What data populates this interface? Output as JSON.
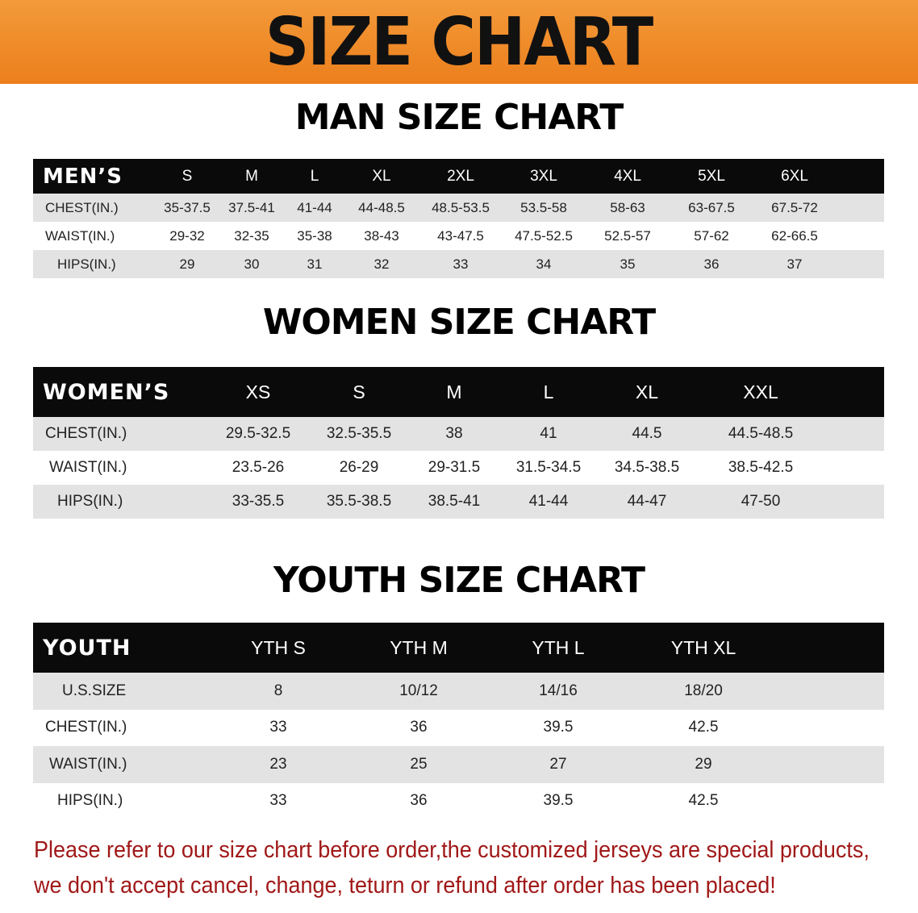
{
  "banner_title": "SIZE CHART",
  "men": {
    "title": "MAN SIZE CHART",
    "header_label": "MEN’S",
    "sizes": [
      "S",
      "M",
      "L",
      "XL",
      "2XL",
      "3XL",
      "4XL",
      "5XL",
      "6XL"
    ],
    "rows": [
      {
        "label": "CHEST(IN.)",
        "values": [
          "35-37.5",
          "37.5-41",
          "41-44",
          "44-48.5",
          "48.5-53.5",
          "53.5-58",
          "58-63",
          "63-67.5",
          "67.5-72"
        ]
      },
      {
        "label": "WAIST(IN.)",
        "values": [
          "29-32",
          "32-35",
          "35-38",
          "38-43",
          "43-47.5",
          "47.5-52.5",
          "52.5-57",
          "57-62",
          "62-66.5"
        ]
      },
      {
        "label": "HIPS(IN.)",
        "values": [
          "29",
          "30",
          "31",
          "32",
          "33",
          "34",
          "35",
          "36",
          "37"
        ]
      }
    ]
  },
  "women": {
    "title": "WOMEN SIZE CHART",
    "header_label": "WOMEN’S",
    "sizes": [
      "XS",
      "S",
      "M",
      "L",
      "XL",
      "XXL"
    ],
    "rows": [
      {
        "label": "CHEST(IN.)",
        "values": [
          "29.5-32.5",
          "32.5-35.5",
          "38",
          "41",
          "44.5",
          "44.5-48.5"
        ]
      },
      {
        "label": "WAIST(IN.)",
        "values": [
          "23.5-26",
          "26-29",
          "29-31.5",
          "31.5-34.5",
          "34.5-38.5",
          "38.5-42.5"
        ]
      },
      {
        "label": "HIPS(IN.)",
        "values": [
          "33-35.5",
          "35.5-38.5",
          "38.5-41",
          "41-44",
          "44-47",
          "47-50"
        ]
      }
    ]
  },
  "youth": {
    "title": "YOUTH SIZE CHART",
    "header_label": "YOUTH",
    "sizes": [
      "YTH S",
      "YTH M",
      "YTH L",
      "YTH XL"
    ],
    "rows": [
      {
        "label": "U.S.SIZE",
        "values": [
          "8",
          "10/12",
          "14/16",
          "18/20"
        ]
      },
      {
        "label": "CHEST(IN.)",
        "values": [
          "33",
          "36",
          "39.5",
          "42.5"
        ]
      },
      {
        "label": "WAIST(IN.)",
        "values": [
          "23",
          "25",
          "27",
          "29"
        ]
      },
      {
        "label": "HIPS(IN.)",
        "values": [
          "33",
          "36",
          "39.5",
          "42.5"
        ]
      }
    ]
  },
  "notice": {
    "line1": "Please refer to our size chart before order,the customized jerseys are special products,",
    "line2": "we don't accept cancel, change, teturn or refund after order has been placed!"
  },
  "colors": {
    "banner": "#ec7f1c",
    "header_row": "#0a0a0a",
    "stripe": "#e3e3e3",
    "notice": "#a01818"
  }
}
